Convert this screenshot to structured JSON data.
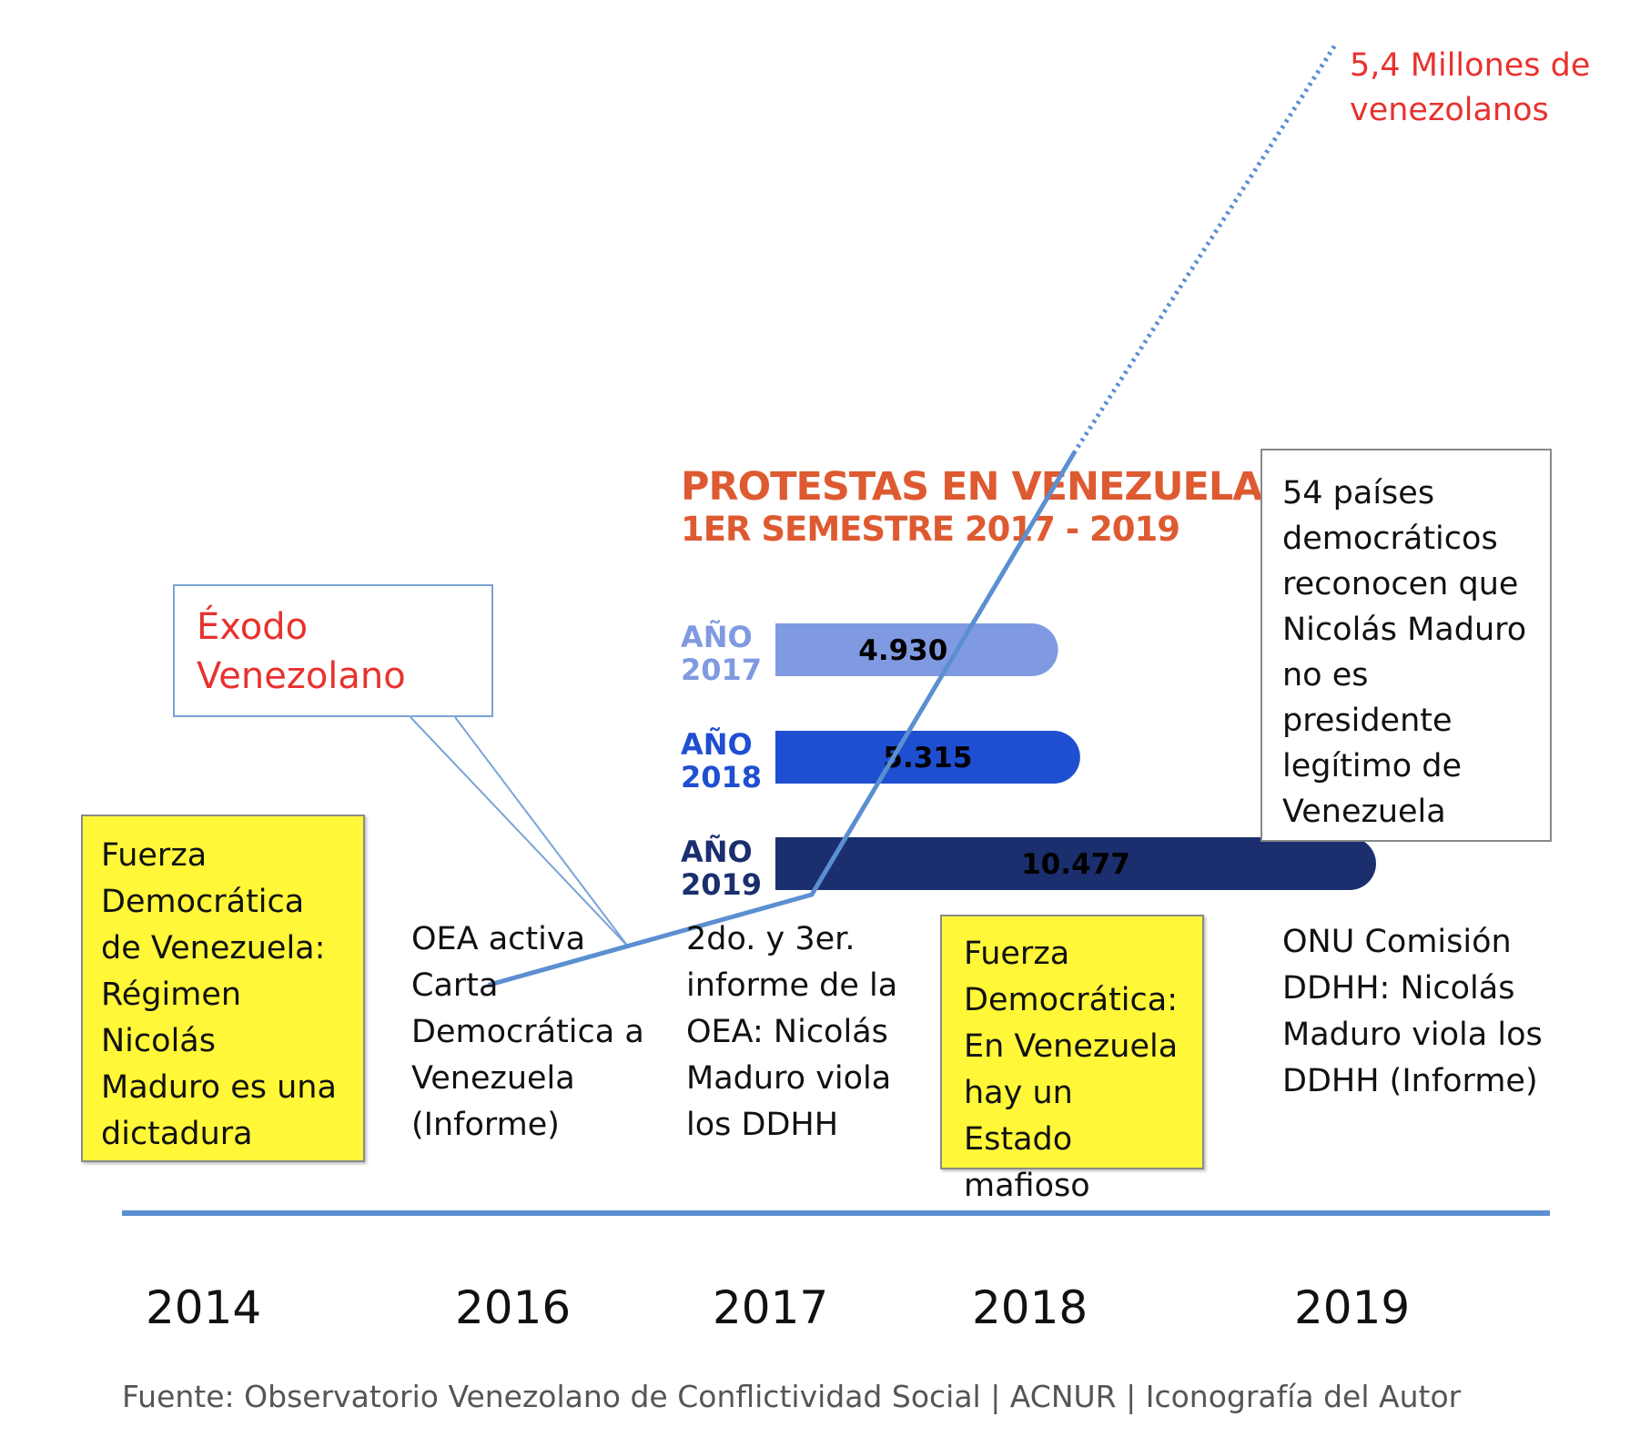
{
  "chart_data": {
    "type": "bar",
    "title": "PROTESTAS EN VENEZUELA",
    "subtitle": "1ER SEMESTRE 2017 - 2019",
    "categories": [
      "AÑO\n2017",
      "AÑO\n2018",
      "AÑO\n2019"
    ],
    "values": [
      4930,
      5315,
      10477
    ],
    "value_labels": [
      "4.930",
      "5.315",
      "10.477"
    ],
    "colors": [
      "#7f9ae0",
      "#1f4fd1",
      "#1b2f6e"
    ],
    "orientation": "horizontal",
    "exodus_line_label": "5,4 Millones de venezolanos"
  },
  "callout": {
    "title": "Éxodo\nVenezolano"
  },
  "events": {
    "e2014": "Fuerza Democrática de Venezuela: Régimen Nicolás Maduro es una dictadura",
    "e2016": "OEA activa Carta Democrática a Venezuela (Informe)",
    "e2017": "2do. y 3er. informe de la OEA: Nicolás Maduro viola los DDHH",
    "e2018": "Fuerza Democrática: En Venezuela hay un Estado mafioso",
    "e2019a": "54 países democráticos reconocen que Nicolás Maduro no es presidente legítimo de Venezuela",
    "e2019b": "ONU Comisión DDHH: Nicolás Maduro viola los DDHH (Informe)"
  },
  "timeline": {
    "years": [
      "2014",
      "2016",
      "2017",
      "2018",
      "2019"
    ]
  },
  "source": "Fuente: Observatorio Venezolano de Conflictividad Social | ACNUR | Iconografía del Autor"
}
